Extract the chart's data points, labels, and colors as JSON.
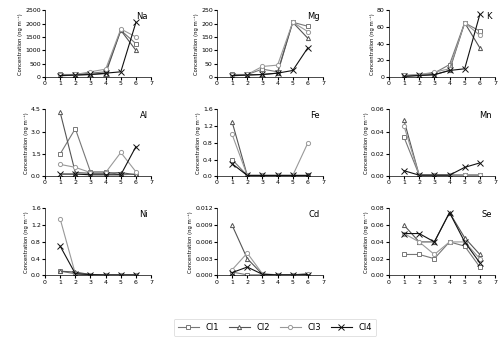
{
  "elements": [
    "Na",
    "Mg",
    "K",
    "Al",
    "Fe",
    "Mn",
    "Ni",
    "Cd",
    "Se"
  ],
  "x": [
    1,
    2,
    3,
    4,
    5,
    6
  ],
  "series": {
    "Na": {
      "Cl1": [
        100,
        100,
        150,
        200,
        1750,
        1250
      ],
      "Cl2": [
        50,
        80,
        100,
        130,
        1750,
        1000
      ],
      "Cl3": [
        80,
        100,
        200,
        300,
        1800,
        1500
      ],
      "Cl4": [
        60,
        80,
        100,
        150,
        200,
        2050
      ]
    },
    "Mg": {
      "Cl1": [
        10,
        10,
        30,
        20,
        205,
        190
      ],
      "Cl2": [
        5,
        8,
        10,
        15,
        205,
        145
      ],
      "Cl3": [
        8,
        10,
        40,
        45,
        205,
        170
      ],
      "Cl4": [
        6,
        8,
        10,
        15,
        25,
        110
      ]
    },
    "K": {
      "Cl1": [
        2,
        3,
        5,
        15,
        65,
        55
      ],
      "Cl2": [
        1,
        2,
        3,
        8,
        65,
        35
      ],
      "Cl3": [
        2,
        3,
        6,
        10,
        65,
        50
      ],
      "Cl4": [
        1,
        2,
        3,
        8,
        10,
        75
      ]
    },
    "Al": {
      "Cl1": [
        1.5,
        3.2,
        0.3,
        0.3,
        0.1,
        0.15
      ],
      "Cl2": [
        4.3,
        0.25,
        0.2,
        0.2,
        0.25,
        0.1
      ],
      "Cl3": [
        0.8,
        0.6,
        0.25,
        0.25,
        1.6,
        0.3
      ],
      "Cl4": [
        0.15,
        0.15,
        0.1,
        0.1,
        0.1,
        2.0
      ]
    },
    "Fe": {
      "Cl1": [
        0.4,
        0.02,
        0.02,
        0.02,
        0.02,
        0.02
      ],
      "Cl2": [
        1.3,
        0.02,
        0.02,
        0.02,
        0.02,
        0.02
      ],
      "Cl3": [
        1.0,
        0.02,
        0.02,
        0.02,
        0.02,
        0.8
      ],
      "Cl4": [
        0.3,
        0.02,
        0.02,
        0.02,
        0.02,
        0.02
      ]
    },
    "Mn": {
      "Cl1": [
        0.035,
        0.001,
        0.001,
        0.001,
        0.001,
        0.001
      ],
      "Cl2": [
        0.05,
        0.001,
        0.001,
        0.001,
        0.001,
        0.001
      ],
      "Cl3": [
        0.045,
        0.001,
        0.001,
        0.001,
        0.001,
        0.001
      ],
      "Cl4": [
        0.005,
        0.001,
        0.001,
        0.001,
        0.008,
        0.012
      ]
    },
    "Ni": {
      "Cl1": [
        0.1,
        0.04,
        0.02,
        0.01,
        0.01,
        0.01
      ],
      "Cl2": [
        0.1,
        0.08,
        0.02,
        0.01,
        0.01,
        0.01
      ],
      "Cl3": [
        1.35,
        0.04,
        0.02,
        0.01,
        0.01,
        0.01
      ],
      "Cl4": [
        0.7,
        0.04,
        0.02,
        0.01,
        0.01,
        0.01
      ]
    },
    "Cd": {
      "Cl1": [
        0.0006,
        0.0001,
        0.0001,
        0.0001,
        0.0001,
        0.0001
      ],
      "Cl2": [
        0.009,
        0.003,
        0.0002,
        0.0001,
        0.0001,
        0.0003
      ],
      "Cl3": [
        0.001,
        0.004,
        0.0003,
        0.0001,
        0.0001,
        0.0002
      ],
      "Cl4": [
        0.0005,
        0.0015,
        0.0002,
        0.0001,
        0.0001,
        0.00015
      ]
    },
    "Se": {
      "Cl1": [
        0.025,
        0.025,
        0.02,
        0.04,
        0.035,
        0.01
      ],
      "Cl2": [
        0.06,
        0.04,
        0.04,
        0.075,
        0.045,
        0.025
      ],
      "Cl3": [
        0.05,
        0.04,
        0.025,
        0.04,
        0.04,
        0.02
      ],
      "Cl4": [
        0.05,
        0.05,
        0.04,
        0.075,
        0.04,
        0.015
      ]
    }
  },
  "ylims": {
    "Na": [
      0,
      2500
    ],
    "Mg": [
      0,
      250
    ],
    "K": [
      0,
      80
    ],
    "Al": [
      0,
      4.5
    ],
    "Fe": [
      0,
      1.6
    ],
    "Mn": [
      0,
      0.06
    ],
    "Ni": [
      0,
      1.6
    ],
    "Cd": [
      0,
      0.012
    ],
    "Se": [
      0,
      0.08
    ]
  },
  "yticks": {
    "Na": [
      0,
      500,
      1000,
      1500,
      2000,
      2500
    ],
    "Mg": [
      0,
      50,
      100,
      150,
      200,
      250
    ],
    "K": [
      0,
      20,
      40,
      60,
      80
    ],
    "Al": [
      0,
      1.5,
      3.0,
      4.5
    ],
    "Fe": [
      0,
      0.4,
      0.8,
      1.2,
      1.6
    ],
    "Mn": [
      0,
      0.02,
      0.04,
      0.06
    ],
    "Ni": [
      0,
      0.4,
      0.8,
      1.2,
      1.6
    ],
    "Cd": [
      0,
      0.003,
      0.006,
      0.009,
      0.012
    ],
    "Se": [
      0,
      0.02,
      0.04,
      0.06,
      0.08
    ]
  },
  "xlim_start": {
    "Na": 0,
    "Mg": 0,
    "K": 0,
    "Al": 0,
    "Fe": 0,
    "Mn": 0,
    "Ni": 0,
    "Cd": 0,
    "Se": 0
  },
  "ylabel": "Concentration (ng m⁻³)",
  "layout": [
    [
      "Na",
      "Mg",
      "K"
    ],
    [
      "Al",
      "Fe",
      "Mn"
    ],
    [
      "Ni",
      "Cd",
      "Se"
    ]
  ],
  "cl_order": [
    "Cl1",
    "Cl2",
    "Cl3",
    "Cl4"
  ],
  "line_colors": {
    "Cl1": "#777777",
    "Cl2": "#555555",
    "Cl3": "#999999",
    "Cl4": "#111111"
  },
  "marker_types": {
    "Cl1": "s",
    "Cl2": "^",
    "Cl3": "o",
    "Cl4": "x"
  },
  "marker_sizes": {
    "Cl1": 3,
    "Cl2": 3,
    "Cl3": 3,
    "Cl4": 4
  }
}
